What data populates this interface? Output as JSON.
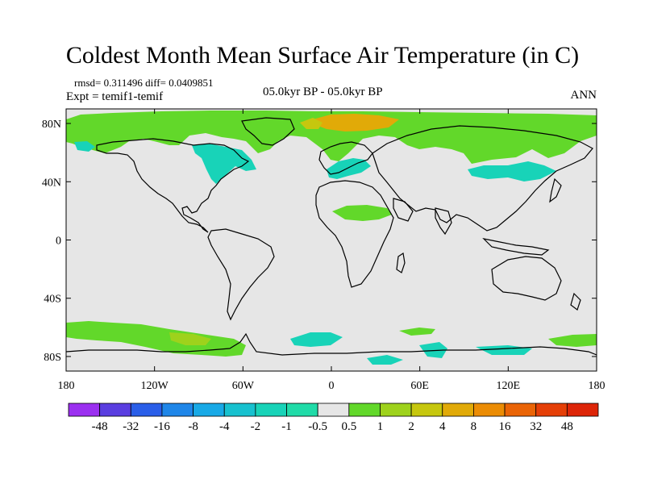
{
  "header": {
    "title": "Coldest Month Mean Surface Air Temperature (in C)",
    "stats": "rmsd= 0.311496 diff= 0.0409851",
    "experiment": "Expt = temif1-temif",
    "period": "05.0kyr BP - 05.0kyr BP",
    "season": "ANN"
  },
  "axes": {
    "x_ticks": [
      "180",
      "120W",
      "60W",
      "0",
      "60E",
      "120E",
      "180"
    ],
    "y_ticks": [
      "80N",
      "40N",
      "0",
      "40S",
      "80S"
    ]
  },
  "colorbar": {
    "labels": [
      "-48",
      "-32",
      "-16",
      "-8",
      "-4",
      "-2",
      "-1",
      "-0.5",
      "0.5",
      "1",
      "2",
      "4",
      "8",
      "16",
      "32",
      "48"
    ],
    "colors": [
      "#9b30f0",
      "#5a3ee0",
      "#2a5ee8",
      "#1f86e8",
      "#18a9e6",
      "#17c1cf",
      "#18d3b8",
      "#20dba8",
      "#e6e6e6",
      "#62d82a",
      "#9ed21c",
      "#c6c70e",
      "#e1aa08",
      "#eb8c04",
      "#ea6406",
      "#e53f07",
      "#dd2508"
    ]
  },
  "map": {
    "background": "#e6e6e6",
    "coast_color": "#000000"
  }
}
